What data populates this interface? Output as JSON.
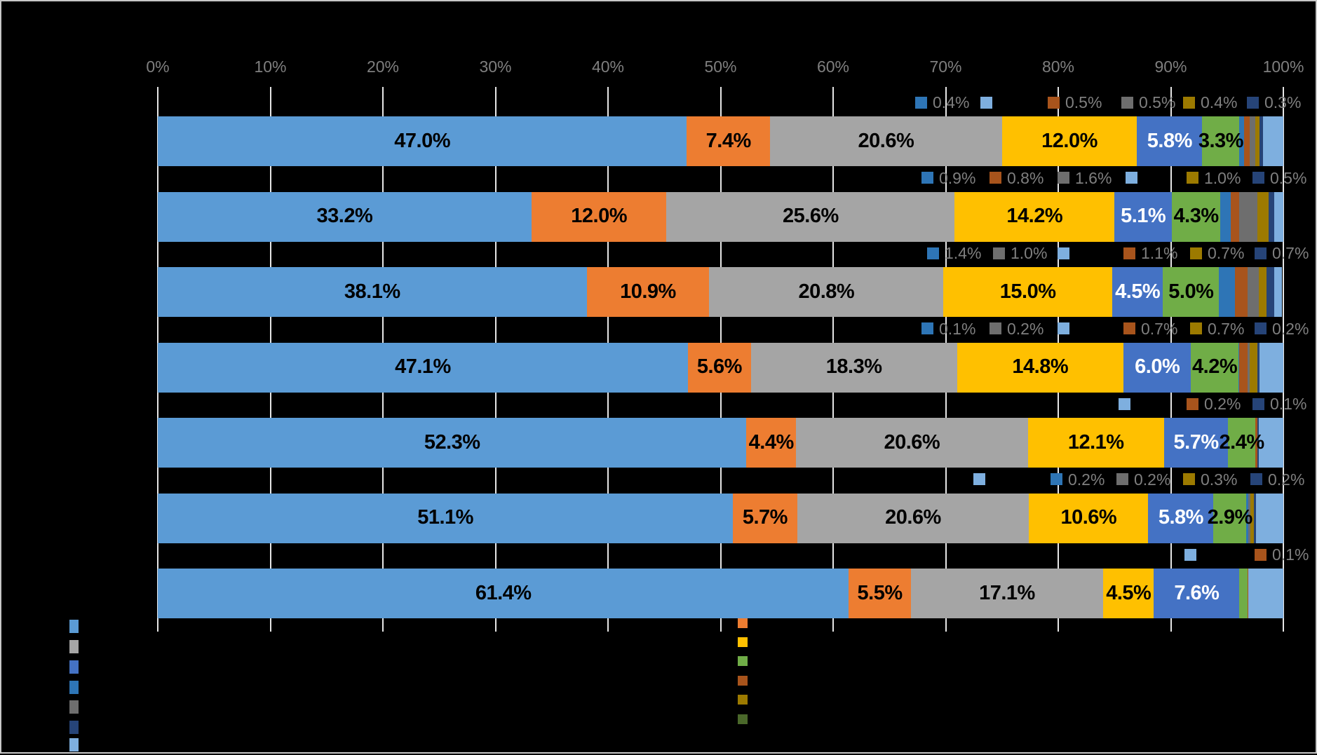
{
  "chart_data": {
    "type": "bar",
    "stacked": true,
    "orientation": "horizontal",
    "title": "",
    "x_axis": {
      "ticks": [
        "0%",
        "10%",
        "20%",
        "30%",
        "40%",
        "50%",
        "60%",
        "70%",
        "80%",
        "90%",
        "100%"
      ],
      "min": 0,
      "max": 100,
      "grid": true
    },
    "palette": {
      "blue": "#5B9BD5",
      "orange": "#ED7D31",
      "gray": "#A5A5A5",
      "yellow": "#FFC000",
      "royal_blue": "#4472C4",
      "green": "#70AD47",
      "dark_blue": "#2E75B6",
      "dark_orange": "#A8541C",
      "dark_gray": "#6E6E6E",
      "dark_yellow": "#9C7A00",
      "dark_green": "#4A682A",
      "navy": "#264478",
      "light_blue": "#7EAFDF"
    },
    "series_order": [
      "blue",
      "orange",
      "gray",
      "yellow",
      "royal_blue",
      "green",
      "dark_blue",
      "dark_orange",
      "dark_gray",
      "dark_yellow",
      "dark_green",
      "navy",
      "light_blue"
    ],
    "rows": [
      {
        "segments": [
          [
            "blue",
            47.0,
            "47.0%"
          ],
          [
            "orange",
            7.4,
            "7.4%"
          ],
          [
            "gray",
            20.6,
            "20.6%"
          ],
          [
            "yellow",
            12.0,
            "12.0%"
          ],
          [
            "royal_blue",
            5.8,
            "5.8%"
          ],
          [
            "green",
            3.3,
            "3.3%"
          ],
          [
            "dark_blue",
            0.4,
            ""
          ],
          [
            "dark_orange",
            0.5,
            ""
          ],
          [
            "dark_gray",
            0.5,
            ""
          ],
          [
            "dark_yellow",
            0.4,
            ""
          ],
          [
            "navy",
            0.3,
            ""
          ],
          [
            "light_blue",
            1.8,
            ""
          ]
        ],
        "callouts": [
          [
            "dark_blue",
            "0.4%",
            1303
          ],
          [
            "light_blue",
            "",
            1396
          ],
          [
            "dark_orange",
            "0.5%",
            1492
          ],
          [
            "dark_gray",
            "0.5%",
            1597
          ],
          [
            "dark_yellow",
            "0.4%",
            1685
          ],
          [
            "navy",
            "0.3%",
            1776
          ]
        ]
      },
      {
        "segments": [
          [
            "blue",
            33.2,
            "33.2%"
          ],
          [
            "orange",
            12.0,
            "12.0%"
          ],
          [
            "gray",
            25.6,
            "25.6%"
          ],
          [
            "yellow",
            14.2,
            "14.2%"
          ],
          [
            "royal_blue",
            5.1,
            "5.1%"
          ],
          [
            "green",
            4.3,
            "4.3%"
          ],
          [
            "dark_blue",
            0.9,
            ""
          ],
          [
            "dark_orange",
            0.8,
            ""
          ],
          [
            "dark_gray",
            1.6,
            ""
          ],
          [
            "dark_yellow",
            1.0,
            ""
          ],
          [
            "navy",
            0.5,
            ""
          ],
          [
            "light_blue",
            0.8,
            ""
          ]
        ],
        "callouts": [
          [
            "dark_blue",
            "0.9%",
            1312
          ],
          [
            "dark_orange",
            "0.8%",
            1409
          ],
          [
            "dark_gray",
            "1.6%",
            1506
          ],
          [
            "light_blue",
            "",
            1603
          ],
          [
            "dark_yellow",
            "1.0%",
            1690
          ],
          [
            "navy",
            "0.5%",
            1784
          ]
        ]
      },
      {
        "segments": [
          [
            "blue",
            38.1,
            "38.1%"
          ],
          [
            "orange",
            10.9,
            "10.9%"
          ],
          [
            "gray",
            20.8,
            "20.8%"
          ],
          [
            "yellow",
            15.0,
            "15.0%"
          ],
          [
            "royal_blue",
            4.5,
            "4.5%"
          ],
          [
            "green",
            5.0,
            "5.0%"
          ],
          [
            "dark_blue",
            1.4,
            ""
          ],
          [
            "dark_orange",
            1.1,
            ""
          ],
          [
            "dark_gray",
            1.0,
            ""
          ],
          [
            "dark_yellow",
            0.7,
            ""
          ],
          [
            "navy",
            0.7,
            ""
          ],
          [
            "light_blue",
            0.7,
            ""
          ]
        ],
        "callouts": [
          [
            "dark_blue",
            "1.4%",
            1320
          ],
          [
            "dark_gray",
            "1.0%",
            1414
          ],
          [
            "light_blue",
            "",
            1506
          ],
          [
            "dark_orange",
            "1.1%",
            1600
          ],
          [
            "dark_yellow",
            "0.7%",
            1695
          ],
          [
            "navy",
            "0.7%",
            1787
          ]
        ]
      },
      {
        "segments": [
          [
            "blue",
            47.1,
            "47.1%"
          ],
          [
            "orange",
            5.6,
            "5.6%"
          ],
          [
            "gray",
            18.3,
            "18.3%"
          ],
          [
            "yellow",
            14.8,
            "14.8%"
          ],
          [
            "royal_blue",
            6.0,
            "6.0%"
          ],
          [
            "green",
            4.2,
            "4.2%"
          ],
          [
            "dark_blue",
            0.1,
            ""
          ],
          [
            "dark_orange",
            0.7,
            ""
          ],
          [
            "dark_gray",
            0.2,
            ""
          ],
          [
            "dark_yellow",
            0.7,
            ""
          ],
          [
            "navy",
            0.2,
            ""
          ],
          [
            "light_blue",
            2.1,
            ""
          ]
        ],
        "callouts": [
          [
            "dark_blue",
            "0.1%",
            1312
          ],
          [
            "dark_gray",
            "0.2%",
            1409
          ],
          [
            "light_blue",
            "",
            1506
          ],
          [
            "dark_orange",
            "0.7%",
            1600
          ],
          [
            "dark_yellow",
            "0.7%",
            1695
          ],
          [
            "navy",
            "0.2%",
            1787
          ]
        ]
      },
      {
        "segments": [
          [
            "blue",
            52.3,
            "52.3%"
          ],
          [
            "orange",
            4.4,
            "4.4%"
          ],
          [
            "gray",
            20.6,
            "20.6%"
          ],
          [
            "yellow",
            12.1,
            "12.1%"
          ],
          [
            "royal_blue",
            5.7,
            "5.7%"
          ],
          [
            "green",
            2.4,
            "2.4%"
          ],
          [
            "dark_orange",
            0.2,
            ""
          ],
          [
            "navy",
            0.1,
            ""
          ],
          [
            "light_blue",
            2.2,
            ""
          ]
        ],
        "callouts": [
          [
            "light_blue",
            "",
            1593
          ],
          [
            "dark_orange",
            "0.2%",
            1690
          ],
          [
            "navy",
            "0.1%",
            1784
          ]
        ]
      },
      {
        "segments": [
          [
            "blue",
            51.1,
            "51.1%"
          ],
          [
            "orange",
            5.7,
            "5.7%"
          ],
          [
            "gray",
            20.6,
            "20.6%"
          ],
          [
            "yellow",
            10.6,
            "10.6%"
          ],
          [
            "royal_blue",
            5.8,
            "5.8%"
          ],
          [
            "green",
            2.9,
            "2.9%"
          ],
          [
            "dark_blue",
            0.2,
            ""
          ],
          [
            "dark_gray",
            0.2,
            ""
          ],
          [
            "dark_yellow",
            0.3,
            ""
          ],
          [
            "navy",
            0.2,
            ""
          ],
          [
            "light_blue",
            2.4,
            ""
          ]
        ],
        "callouts": [
          [
            "light_blue",
            "",
            1386
          ],
          [
            "dark_blue",
            "0.2%",
            1496
          ],
          [
            "dark_gray",
            "0.2%",
            1590
          ],
          [
            "dark_yellow",
            "0.3%",
            1685
          ],
          [
            "navy",
            "0.2%",
            1781
          ]
        ]
      },
      {
        "segments": [
          [
            "blue",
            61.4,
            "61.4%"
          ],
          [
            "orange",
            5.5,
            "5.5%"
          ],
          [
            "gray",
            17.1,
            "17.1%"
          ],
          [
            "yellow",
            4.5,
            "4.5%"
          ],
          [
            "royal_blue",
            7.6,
            "7.6%"
          ],
          [
            "green",
            0.7,
            ""
          ],
          [
            "dark_orange",
            0.1,
            ""
          ],
          [
            "light_blue",
            3.1,
            ""
          ]
        ],
        "callouts": [
          [
            "light_blue",
            "",
            1687
          ],
          [
            "dark_orange",
            "0.1%",
            1787
          ]
        ]
      }
    ],
    "legend": {
      "left_column": [
        "blue",
        "gray",
        "royal_blue",
        "dark_blue",
        "dark_gray",
        "navy",
        "light_blue"
      ],
      "middle_column": [
        "orange",
        "yellow",
        "green",
        "dark_orange",
        "dark_yellow",
        "dark_green"
      ]
    },
    "layout_note": "black background, white vertical gridlines every 10%, gray value callouts above each bar for small segments"
  }
}
